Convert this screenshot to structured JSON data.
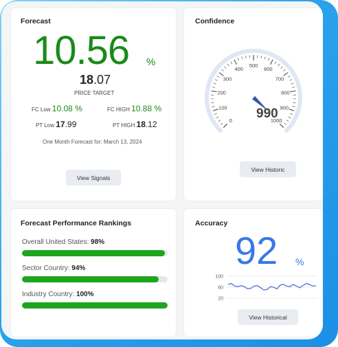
{
  "forecast": {
    "title": "Forecast",
    "value": "10.56",
    "unit": "%",
    "price_target_int": "18",
    "price_target_dec": ".07",
    "price_target_label": "PRICE TARGET",
    "fc_low_label": "FC Low",
    "fc_low_value": "10.08 %",
    "fc_high_label": "FC HIGH",
    "fc_high_value": "10.88 %",
    "pt_low_label": "PT Low",
    "pt_low_int": "17",
    "pt_low_dec": ".99",
    "pt_high_label": "PT HIGH",
    "pt_high_int": "18",
    "pt_high_dec": ".12",
    "note": "One Month Forecast for: March 13, 2024",
    "button": "View Signals"
  },
  "confidence": {
    "title": "Confidence",
    "value": "990",
    "gauge_min": 0,
    "gauge_max": 1000,
    "gauge_value": 990,
    "tick_labels": [
      "0",
      "100",
      "200",
      "300",
      "400",
      "500",
      "600",
      "700",
      "800",
      "900",
      "1000"
    ],
    "button": "View Historic",
    "needle_color": "#3a55a8"
  },
  "rankings": {
    "title": "Forecast Performance Rankings",
    "items": [
      {
        "label": "Overall United States:",
        "value": "98%",
        "fraction": 0.98
      },
      {
        "label": "Sector Country:",
        "value": "94%",
        "fraction": 0.94
      },
      {
        "label": "Industry Country:",
        "value": "100%",
        "fraction": 1.0
      }
    ],
    "bar_color": "#1ea51e"
  },
  "accuracy": {
    "title": "Accuracy",
    "value": "92",
    "unit": "%",
    "button": "View Historical",
    "spark_ticks": [
      "100",
      "60",
      "20"
    ],
    "spark_values": [
      70,
      74,
      64,
      62,
      66,
      62,
      54,
      56,
      64,
      66,
      58,
      50,
      52,
      62,
      60,
      54,
      68,
      70,
      64,
      62,
      70,
      64,
      58,
      66,
      74,
      70,
      64,
      66
    ],
    "spark_color": "#5a6fd8"
  }
}
